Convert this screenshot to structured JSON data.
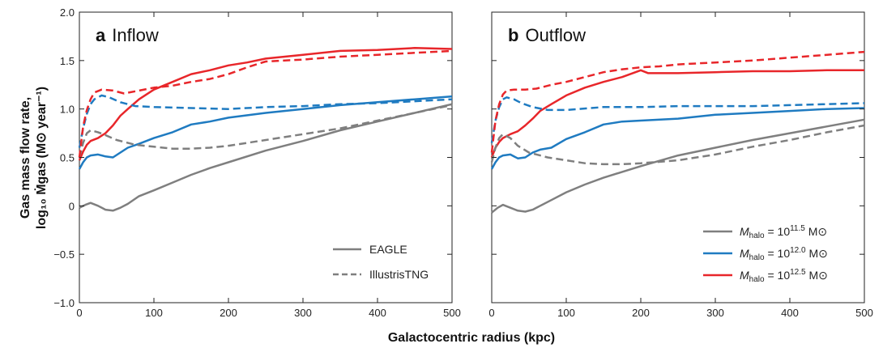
{
  "colors": {
    "gray": "#7f7f7f",
    "blue": "#1f7bc1",
    "red": "#e8262a"
  },
  "shared": {
    "xlabel": "Galactocentric radius (kpc)",
    "ylabel_line1": "Gas mass flow rate,",
    "ylabel_line2": "log₁₀ Ṁgas (M⊙ year⁻¹)"
  },
  "chart_data": [
    {
      "type": "line",
      "panel_letter": "a",
      "panel_title": "Inflow",
      "xlim": [
        0,
        500
      ],
      "ylim": [
        -1.0,
        2.0
      ],
      "x_ticks": [
        0,
        100,
        200,
        300,
        400,
        500
      ],
      "y_ticks": [
        -1.0,
        -0.5,
        0,
        0.5,
        1.0,
        1.5,
        2.0
      ],
      "y_tick_labels": [
        "−1.0",
        "−0.5",
        "0",
        "0.5",
        "1.0",
        "1.5",
        "2.0"
      ],
      "legend": {
        "position": "bottom-right",
        "entries": [
          {
            "label": "EAGLE",
            "style": "solid"
          },
          {
            "label": "IllustrisTNG",
            "style": "dashed"
          }
        ]
      },
      "series": [
        {
          "simulation": "EAGLE",
          "halo": "10^11.5",
          "color": "gray",
          "style": "solid",
          "x": [
            0,
            8,
            15,
            25,
            35,
            45,
            55,
            65,
            80,
            100,
            125,
            150,
            175,
            200,
            250,
            300,
            350,
            400,
            450,
            500
          ],
          "y": [
            -0.02,
            0.01,
            0.03,
            0.0,
            -0.04,
            -0.05,
            -0.02,
            0.02,
            0.1,
            0.16,
            0.24,
            0.32,
            0.39,
            0.45,
            0.57,
            0.67,
            0.78,
            0.87,
            0.96,
            1.05
          ]
        },
        {
          "simulation": "EAGLE",
          "halo": "10^12.0",
          "color": "blue",
          "style": "solid",
          "x": [
            0,
            5,
            10,
            15,
            25,
            35,
            45,
            55,
            65,
            80,
            100,
            125,
            150,
            175,
            200,
            250,
            300,
            350,
            400,
            450,
            500
          ],
          "y": [
            0.38,
            0.45,
            0.5,
            0.52,
            0.53,
            0.51,
            0.5,
            0.55,
            0.6,
            0.64,
            0.7,
            0.76,
            0.84,
            0.87,
            0.91,
            0.96,
            1.0,
            1.04,
            1.07,
            1.1,
            1.13
          ]
        },
        {
          "simulation": "EAGLE",
          "halo": "10^12.5",
          "color": "red",
          "style": "solid",
          "x": [
            0,
            5,
            10,
            15,
            25,
            35,
            45,
            55,
            65,
            80,
            100,
            125,
            150,
            175,
            200,
            225,
            250,
            300,
            350,
            400,
            450,
            500
          ],
          "y": [
            0.47,
            0.56,
            0.63,
            0.67,
            0.7,
            0.75,
            0.83,
            0.93,
            1.0,
            1.1,
            1.2,
            1.28,
            1.36,
            1.4,
            1.45,
            1.48,
            1.52,
            1.56,
            1.6,
            1.61,
            1.63,
            1.62
          ]
        },
        {
          "simulation": "IllustrisTNG",
          "halo": "10^11.5",
          "color": "gray",
          "style": "dashed",
          "x": [
            0,
            5,
            10,
            15,
            25,
            35,
            50,
            75,
            100,
            125,
            150,
            175,
            200,
            250,
            300,
            350,
            400,
            450,
            500
          ],
          "y": [
            0.5,
            0.65,
            0.75,
            0.78,
            0.76,
            0.73,
            0.68,
            0.63,
            0.61,
            0.59,
            0.59,
            0.6,
            0.62,
            0.68,
            0.74,
            0.8,
            0.88,
            0.96,
            1.04
          ]
        },
        {
          "simulation": "IllustrisTNG",
          "halo": "10^12.0",
          "color": "blue",
          "style": "dashed",
          "x": [
            0,
            5,
            10,
            15,
            20,
            30,
            40,
            55,
            75,
            100,
            150,
            200,
            250,
            300,
            350,
            400,
            450,
            500
          ],
          "y": [
            0.6,
            0.8,
            0.95,
            1.05,
            1.1,
            1.14,
            1.12,
            1.07,
            1.03,
            1.02,
            1.01,
            1.0,
            1.02,
            1.03,
            1.05,
            1.06,
            1.08,
            1.1
          ]
        },
        {
          "simulation": "IllustrisTNG",
          "halo": "10^12.5",
          "color": "red",
          "style": "dashed",
          "x": [
            0,
            5,
            10,
            15,
            20,
            30,
            45,
            60,
            80,
            100,
            125,
            150,
            175,
            200,
            225,
            250,
            300,
            350,
            400,
            450,
            500
          ],
          "y": [
            0.5,
            0.82,
            0.99,
            1.1,
            1.17,
            1.2,
            1.19,
            1.16,
            1.19,
            1.22,
            1.24,
            1.28,
            1.31,
            1.36,
            1.43,
            1.49,
            1.51,
            1.54,
            1.56,
            1.58,
            1.6
          ]
        }
      ]
    },
    {
      "type": "line",
      "panel_letter": "b",
      "panel_title": "Outflow",
      "xlim": [
        0,
        500
      ],
      "ylim": [
        -1.0,
        2.0
      ],
      "x_ticks": [
        0,
        100,
        200,
        300,
        400,
        500
      ],
      "y_ticks": [
        -1.0,
        -0.5,
        0,
        0.5,
        1.0,
        1.5,
        2.0
      ],
      "legend": {
        "position": "bottom-right",
        "entries": [
          {
            "label_prefix": "M",
            "label_sub": "halo",
            "label_mid": " = 10",
            "label_sup": "11.5",
            "label_unit": " M⊙",
            "color": "gray"
          },
          {
            "label_prefix": "M",
            "label_sub": "halo",
            "label_mid": " = 10",
            "label_sup": "12.0",
            "label_unit": " M⊙",
            "color": "blue"
          },
          {
            "label_prefix": "M",
            "label_sub": "halo",
            "label_mid": " = 10",
            "label_sup": "12.5",
            "label_unit": " M⊙",
            "color": "red"
          }
        ]
      },
      "series": [
        {
          "simulation": "EAGLE",
          "halo": "10^11.5",
          "color": "gray",
          "style": "solid",
          "x": [
            0,
            8,
            15,
            25,
            35,
            45,
            55,
            65,
            80,
            100,
            125,
            150,
            175,
            200,
            250,
            300,
            350,
            400,
            450,
            500
          ],
          "y": [
            -0.07,
            -0.02,
            0.01,
            -0.02,
            -0.05,
            -0.06,
            -0.04,
            0.0,
            0.06,
            0.14,
            0.22,
            0.29,
            0.35,
            0.41,
            0.52,
            0.6,
            0.68,
            0.75,
            0.82,
            0.89
          ]
        },
        {
          "simulation": "EAGLE",
          "halo": "10^12.0",
          "color": "blue",
          "style": "solid",
          "x": [
            0,
            5,
            10,
            15,
            25,
            35,
            45,
            55,
            65,
            80,
            100,
            125,
            150,
            175,
            200,
            250,
            300,
            350,
            400,
            450,
            500
          ],
          "y": [
            0.38,
            0.45,
            0.5,
            0.52,
            0.53,
            0.49,
            0.5,
            0.55,
            0.58,
            0.6,
            0.69,
            0.76,
            0.84,
            0.87,
            0.88,
            0.9,
            0.94,
            0.96,
            0.98,
            1.0,
            1.01
          ]
        },
        {
          "simulation": "EAGLE",
          "halo": "10^12.5",
          "color": "red",
          "style": "solid",
          "x": [
            0,
            5,
            10,
            15,
            25,
            35,
            45,
            55,
            65,
            80,
            100,
            125,
            150,
            175,
            200,
            210,
            250,
            300,
            350,
            400,
            450,
            500
          ],
          "y": [
            0.5,
            0.6,
            0.66,
            0.7,
            0.74,
            0.77,
            0.83,
            0.9,
            0.98,
            1.05,
            1.14,
            1.22,
            1.28,
            1.33,
            1.4,
            1.37,
            1.37,
            1.38,
            1.39,
            1.39,
            1.4,
            1.4
          ]
        },
        {
          "simulation": "IllustrisTNG",
          "halo": "10^11.5",
          "color": "gray",
          "style": "dashed",
          "x": [
            0,
            5,
            10,
            15,
            25,
            35,
            50,
            75,
            100,
            125,
            150,
            175,
            200,
            250,
            300,
            350,
            400,
            450,
            500
          ],
          "y": [
            0.45,
            0.6,
            0.7,
            0.74,
            0.7,
            0.62,
            0.55,
            0.5,
            0.47,
            0.44,
            0.43,
            0.43,
            0.44,
            0.47,
            0.53,
            0.61,
            0.68,
            0.76,
            0.83
          ]
        },
        {
          "simulation": "IllustrisTNG",
          "halo": "10^12.0",
          "color": "blue",
          "style": "dashed",
          "x": [
            0,
            5,
            10,
            15,
            20,
            30,
            40,
            55,
            75,
            100,
            150,
            200,
            250,
            300,
            350,
            400,
            450,
            500
          ],
          "y": [
            0.65,
            0.88,
            1.02,
            1.1,
            1.12,
            1.1,
            1.06,
            1.02,
            0.99,
            0.99,
            1.02,
            1.02,
            1.03,
            1.03,
            1.03,
            1.04,
            1.05,
            1.06
          ]
        },
        {
          "simulation": "IllustrisTNG",
          "halo": "10^12.5",
          "color": "red",
          "style": "dashed",
          "x": [
            0,
            5,
            10,
            15,
            20,
            30,
            45,
            60,
            80,
            100,
            125,
            150,
            175,
            200,
            225,
            250,
            300,
            350,
            400,
            450,
            500
          ],
          "y": [
            0.55,
            0.88,
            1.05,
            1.15,
            1.19,
            1.2,
            1.2,
            1.21,
            1.25,
            1.28,
            1.33,
            1.38,
            1.41,
            1.43,
            1.44,
            1.46,
            1.48,
            1.5,
            1.53,
            1.56,
            1.59
          ]
        }
      ]
    }
  ]
}
